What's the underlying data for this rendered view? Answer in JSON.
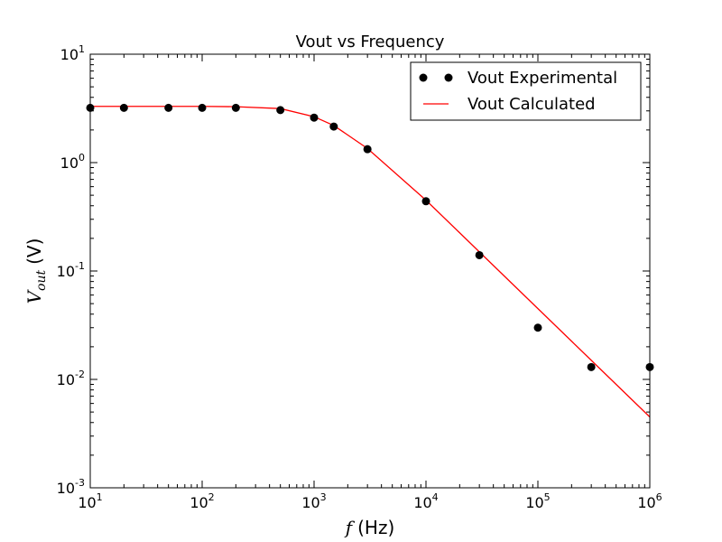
{
  "chart_data": {
    "type": "scatter",
    "title": "Vout vs Frequency",
    "xlabel": {
      "var": "f",
      "unit": "(Hz)"
    },
    "ylabel": {
      "var": "V",
      "sub": "out",
      "unit": "(V)"
    },
    "xscale": "log",
    "yscale": "log",
    "xlim": [
      10,
      1000000
    ],
    "ylim": [
      0.001,
      10
    ],
    "xticks": [
      {
        "value": 10,
        "base": "10",
        "exp": "1"
      },
      {
        "value": 100,
        "base": "10",
        "exp": "2"
      },
      {
        "value": 1000,
        "base": "10",
        "exp": "3"
      },
      {
        "value": 10000,
        "base": "10",
        "exp": "4"
      },
      {
        "value": 100000,
        "base": "10",
        "exp": "5"
      },
      {
        "value": 1000000,
        "base": "10",
        "exp": "6"
      }
    ],
    "yticks": [
      {
        "value": 0.001,
        "base": "10",
        "exp": "-3"
      },
      {
        "value": 0.01,
        "base": "10",
        "exp": "-2"
      },
      {
        "value": 0.1,
        "base": "10",
        "exp": "-1"
      },
      {
        "value": 1,
        "base": "10",
        "exp": "0"
      },
      {
        "value": 10,
        "base": "10",
        "exp": "1"
      }
    ],
    "legend": {
      "placement": "upper-right"
    },
    "series": [
      {
        "name": "Vout Experimental",
        "kind": "markers",
        "color": "#000000",
        "x": [
          10,
          20,
          50,
          100,
          200,
          500,
          1000,
          1500,
          3000,
          10000,
          30000,
          100000,
          300000,
          1000000
        ],
        "y": [
          3.2,
          3.2,
          3.2,
          3.2,
          3.2,
          3.05,
          2.6,
          2.15,
          1.33,
          0.44,
          0.14,
          0.03,
          0.013,
          0.013
        ]
      },
      {
        "name": "Vout Calculated",
        "kind": "line",
        "color": "#ff0000",
        "x": [
          10,
          20,
          50,
          100,
          200,
          500,
          1000,
          1500,
          3000,
          10000,
          30000,
          100000,
          300000,
          1000000
        ],
        "y": [
          3.3,
          3.3,
          3.3,
          3.3,
          3.28,
          3.15,
          2.65,
          2.2,
          1.35,
          0.45,
          0.15,
          0.045,
          0.015,
          0.0045
        ]
      }
    ]
  }
}
